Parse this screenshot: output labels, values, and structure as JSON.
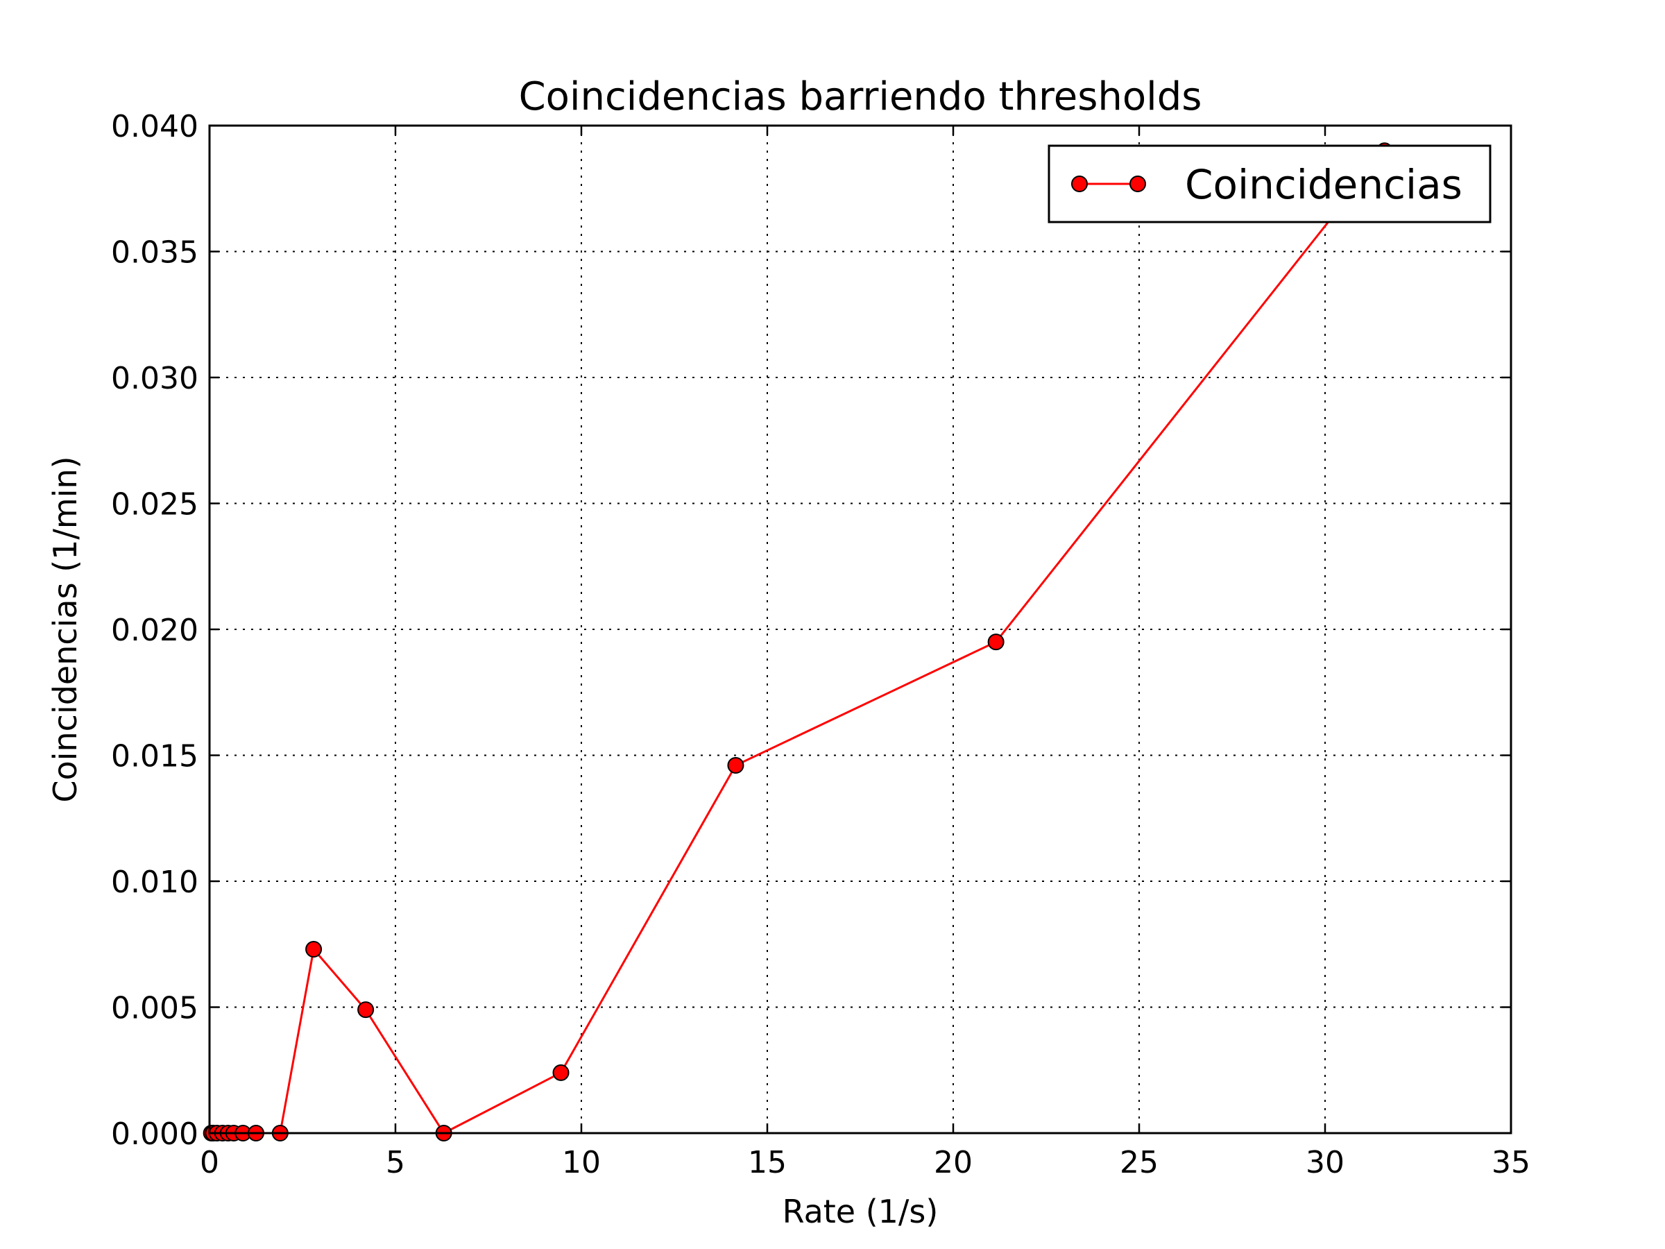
{
  "chart_data": {
    "type": "line",
    "title": "Coincidencias barriendo thresholds",
    "xlabel": "Rate (1/s)",
    "ylabel": "Coincidencias (1/min)",
    "xlim": [
      0,
      35
    ],
    "ylim": [
      0,
      0.04
    ],
    "x_ticks": [
      "0",
      "5",
      "10",
      "15",
      "20",
      "25",
      "30",
      "35"
    ],
    "y_ticks": [
      "0.000",
      "0.005",
      "0.010",
      "0.015",
      "0.020",
      "0.025",
      "0.030",
      "0.035",
      "0.040"
    ],
    "grid": true,
    "legend_position": "top-right",
    "series": [
      {
        "name": "Coincidencias",
        "color": "#ff0000",
        "marker": "circle",
        "x": [
          0.05,
          0.1,
          0.2,
          0.35,
          0.5,
          0.65,
          0.9,
          1.25,
          1.9,
          2.8,
          4.2,
          6.3,
          9.45,
          14.15,
          21.15,
          31.6
        ],
        "y": [
          0,
          0,
          0,
          0,
          0,
          0,
          0,
          0,
          0,
          0.0073,
          0.0049,
          0,
          0.0024,
          0.0146,
          0.0195,
          0.039
        ]
      }
    ]
  }
}
